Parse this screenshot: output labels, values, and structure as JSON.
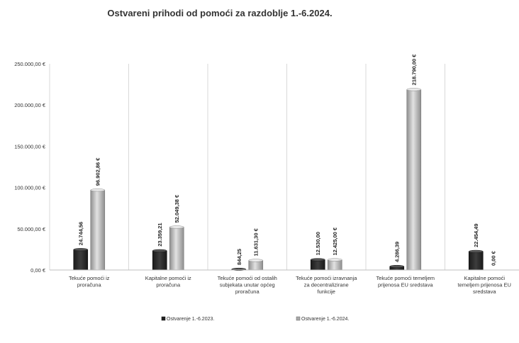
{
  "chart_data": {
    "type": "bar",
    "title": "Ostvareni prihodi od pomoći za razdoblje 1.-6.2024.",
    "categories": [
      [
        "Tekuće pomoći iz",
        "proračuna"
      ],
      [
        "Kapitalne pomoći iz",
        "proračuna"
      ],
      [
        "Tekuće pomoći od ostalih",
        "subjekata unutar općeg",
        "proračuna"
      ],
      [
        "Tekuće pomoći izravnanja",
        "za decentralizirane",
        "funkcije"
      ],
      [
        "Tekuće pomoći temeljem",
        "prijenosa EU sredstava"
      ],
      [
        "Kapitalne pomoći",
        "temeljem prijenosa EU",
        "sredstava"
      ]
    ],
    "series": [
      {
        "name": "Ostvarenje 1.-6.2023.",
        "color": "#2b2b2b",
        "values": [
          24744.56,
          23359.21,
          844.25,
          12530.0,
          4286.39,
          22454.49
        ],
        "labels": [
          "24.744,56",
          "23.359,21",
          "844,25",
          "12.530,00",
          "4.286,39",
          "22.454,49"
        ]
      },
      {
        "name": "Ostvarenje 1.-6.2024.",
        "color": "#b8b8b8",
        "values": [
          96902.86,
          52049.38,
          11631.3,
          12425.0,
          218790.0,
          0.0
        ],
        "labels": [
          "96.902,86 €",
          "52.049,38 €",
          "11.631,30 €",
          "12.425,00 €",
          "218.790,00 €",
          "0,00 €"
        ]
      }
    ],
    "ylim": [
      0,
      250000
    ],
    "yticks": [
      0,
      50000,
      100000,
      150000,
      200000,
      250000
    ],
    "ytick_labels": [
      "0,00 €",
      "50.000,00 €",
      "100.000,00 €",
      "150.000,00 €",
      "200.000,00 €",
      "250.000,00 €"
    ],
    "grid": "vertical",
    "legend_position": "bottom"
  }
}
